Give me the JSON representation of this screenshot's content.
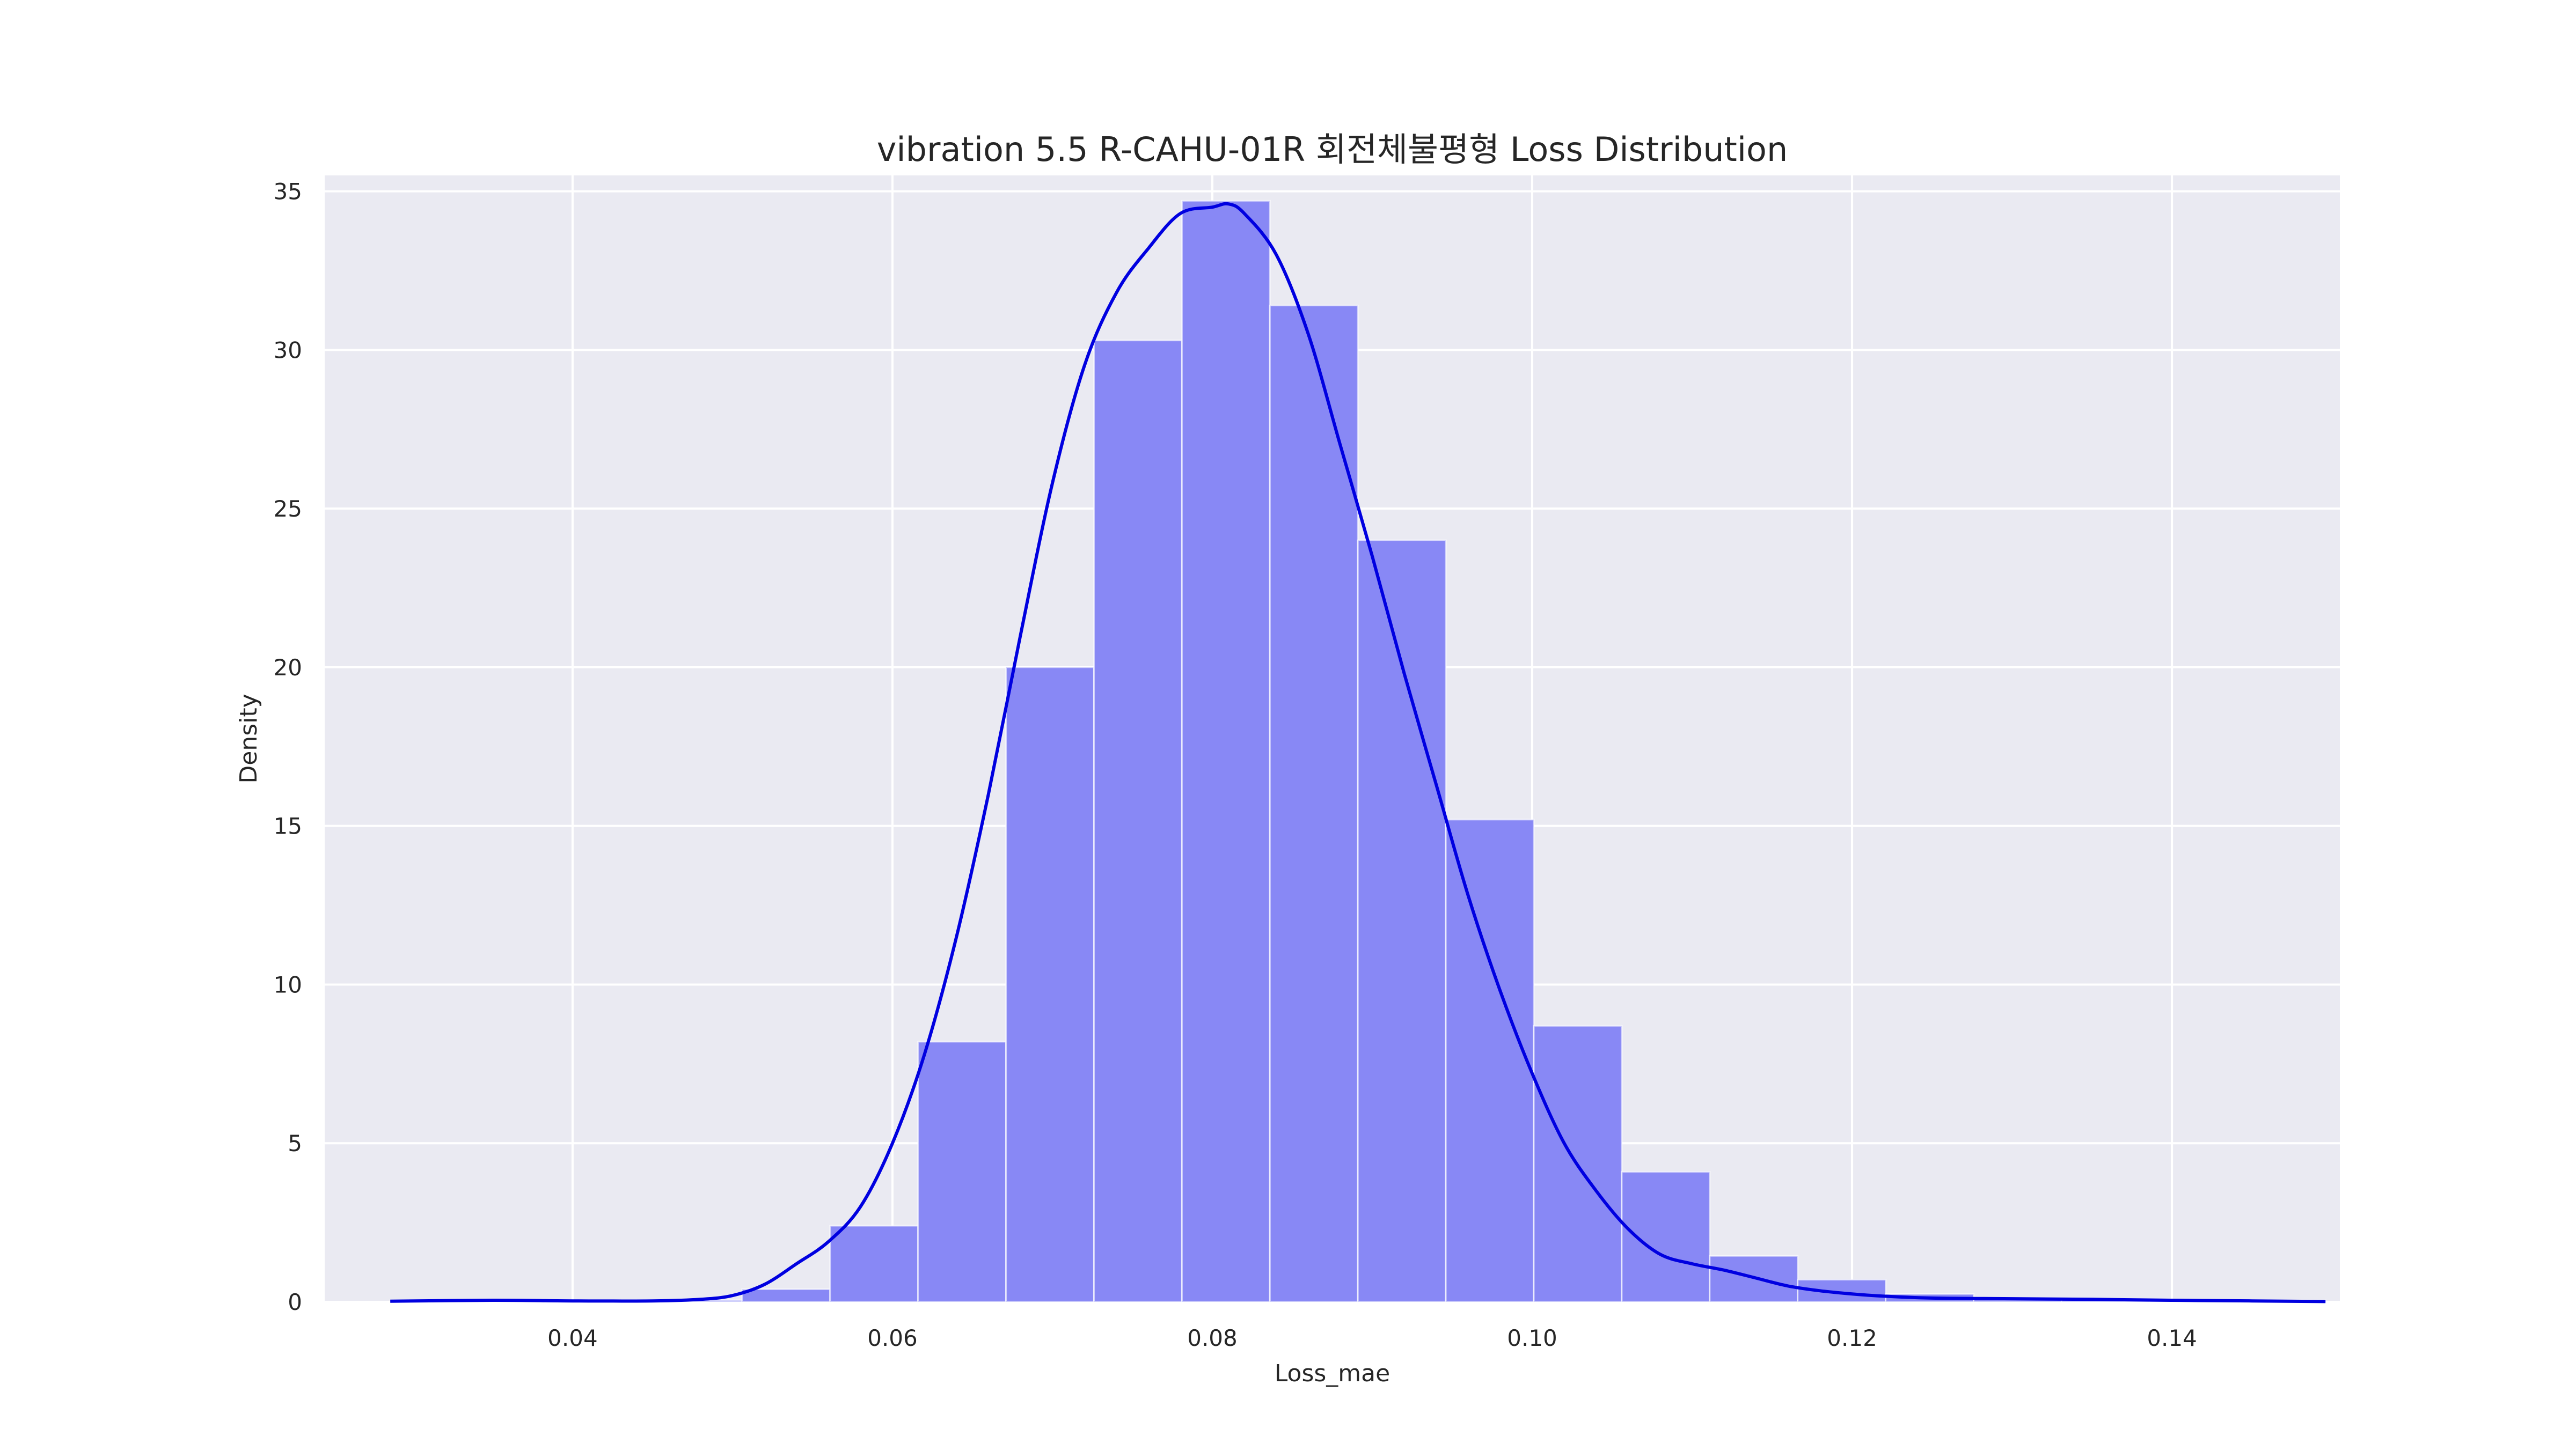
{
  "chart_data": {
    "type": "bar",
    "title": "vibration 5.5 R-CAHU-01R 회전체불평형 Loss Distribution",
    "xlabel": "Loss_mae",
    "ylabel": "Density",
    "xlim": [
      0.0245,
      0.1505
    ],
    "ylim": [
      0,
      35.5
    ],
    "xticks": [
      0.04,
      0.06,
      0.08,
      0.1,
      0.12,
      0.14
    ],
    "xtick_labels": [
      "0.04",
      "0.06",
      "0.08",
      "0.10",
      "0.12",
      "0.14"
    ],
    "yticks": [
      0,
      5,
      10,
      15,
      20,
      25,
      30,
      35
    ],
    "ytick_labels": [
      "0",
      "5",
      "10",
      "15",
      "20",
      "25",
      "30",
      "35"
    ],
    "grid": true,
    "colors": {
      "background": "#eaeaf2",
      "grid": "#ffffff",
      "bar_fill": "#8888f5",
      "bar_edge": "#ffffff",
      "kde_line": "#0000e0",
      "text": "#262626"
    },
    "histogram": {
      "bin_edges": [
        0.0286,
        0.0341,
        0.0396,
        0.0451,
        0.0506,
        0.0561,
        0.0616,
        0.0671,
        0.0726,
        0.0781,
        0.0836,
        0.0891,
        0.0946,
        0.1001,
        0.1056,
        0.1111,
        0.1166,
        0.1221,
        0.1276,
        0.1331,
        0.1386,
        0.1441,
        0.1496
      ],
      "density": [
        0.05,
        0.05,
        0.05,
        0.05,
        0.4,
        2.4,
        8.2,
        20.0,
        30.3,
        34.7,
        31.4,
        24.0,
        15.2,
        8.7,
        4.1,
        1.45,
        0.7,
        0.25,
        0.1,
        0.08,
        0.05,
        0.05
      ]
    },
    "kde": {
      "x": [
        0.0286,
        0.035,
        0.04,
        0.045,
        0.048,
        0.05,
        0.052,
        0.054,
        0.056,
        0.058,
        0.06,
        0.062,
        0.064,
        0.066,
        0.068,
        0.07,
        0.072,
        0.074,
        0.076,
        0.078,
        0.08,
        0.081,
        0.082,
        0.084,
        0.086,
        0.088,
        0.09,
        0.092,
        0.094,
        0.096,
        0.098,
        0.1,
        0.102,
        0.104,
        0.106,
        0.108,
        0.11,
        0.112,
        0.114,
        0.116,
        0.118,
        0.12,
        0.122,
        0.125,
        0.13,
        0.135,
        0.14,
        0.145,
        0.1496
      ],
      "y": [
        0.02,
        0.05,
        0.03,
        0.03,
        0.08,
        0.2,
        0.55,
        1.2,
        1.9,
        3.0,
        5.0,
        7.8,
        11.5,
        16.0,
        21.0,
        25.8,
        29.5,
        31.8,
        33.2,
        34.3,
        34.5,
        34.6,
        34.3,
        33.0,
        30.5,
        27.0,
        23.5,
        19.8,
        16.3,
        12.8,
        9.8,
        7.2,
        5.0,
        3.5,
        2.3,
        1.5,
        1.2,
        1.0,
        0.75,
        0.5,
        0.35,
        0.25,
        0.18,
        0.12,
        0.1,
        0.08,
        0.05,
        0.03,
        0.01
      ]
    }
  }
}
